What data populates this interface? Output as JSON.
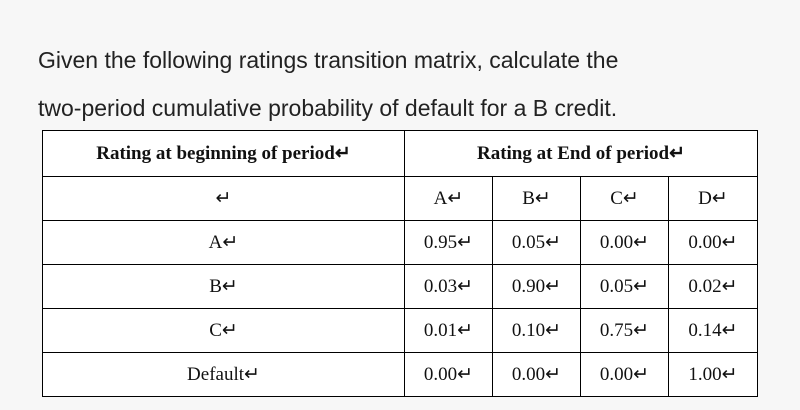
{
  "question": {
    "lines": [
      "Given the following ratings transition matrix, calculate the",
      "two-period cumulative probability of default for a B credit."
    ]
  },
  "table": {
    "header": {
      "row_label": "Rating at beginning of period↵",
      "col_group": "Rating at End of period↵"
    },
    "columns": [
      "↵",
      "A↵",
      "B↵",
      "C↵",
      "D↵"
    ],
    "rows": [
      [
        "A↵",
        "0.95↵",
        "0.05↵",
        "0.00↵",
        "0.00↵"
      ],
      [
        "B↵",
        "0.03↵",
        "0.90↵",
        "0.05↵",
        "0.02↵"
      ],
      [
        "C↵",
        "0.01↵",
        "0.10↵",
        "0.75↵",
        "0.14↵"
      ],
      [
        "Default↵",
        "0.00↵",
        "0.00↵",
        "0.00↵",
        "1.00↵"
      ]
    ]
  }
}
